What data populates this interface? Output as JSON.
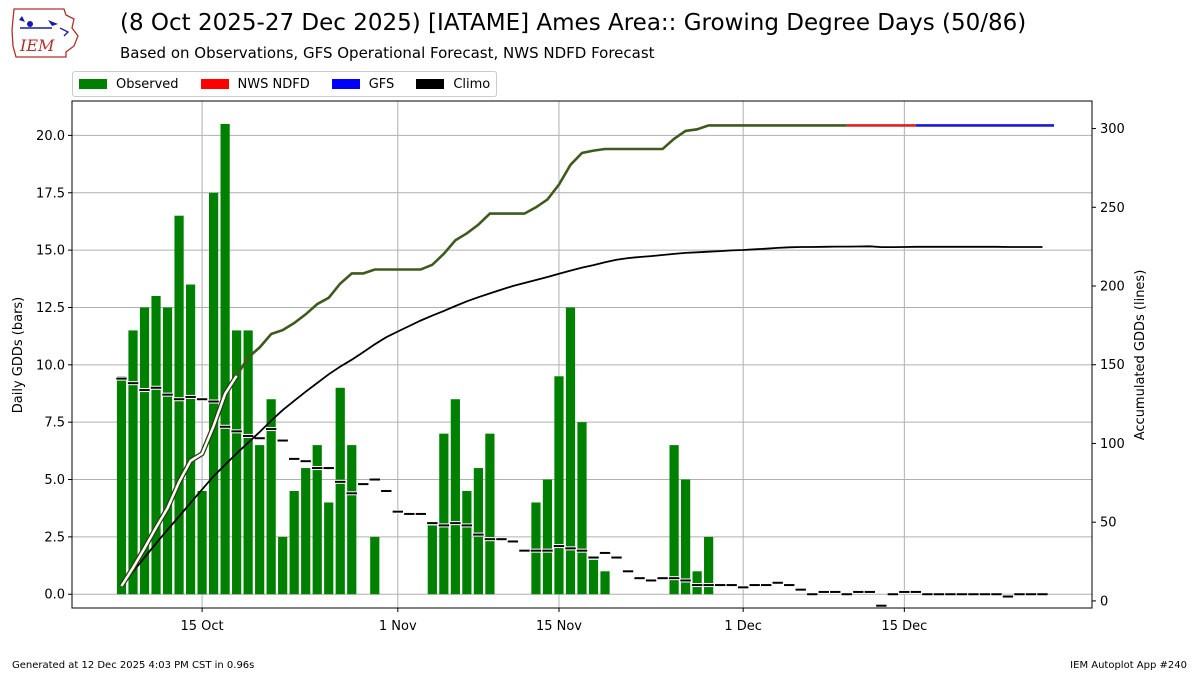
{
  "header": {
    "title": "(8 Oct 2025-27 Dec 2025) [IATAME] Ames Area:: Growing Degree Days (50/86)",
    "subtitle": "Based on Observations, GFS Operational Forecast, NWS NDFD Forecast",
    "logo_text": "IEM"
  },
  "footer": {
    "generated": "Generated at 12 Dec 2025 4:03 PM CST in 0.96s",
    "app": "IEM Autoplot App #240"
  },
  "legend": [
    {
      "label": "Observed",
      "color": "#008000"
    },
    {
      "label": "NWS NDFD",
      "color": "#ff0000"
    },
    {
      "label": "GFS",
      "color": "#0000ff"
    },
    {
      "label": "Climo",
      "color": "#000000"
    }
  ],
  "chart_data": {
    "type": "bar",
    "start_date": "2025-10-08",
    "end_date": "2025-12-27",
    "ylabel_left": "Daily GDDs (bars)",
    "ylabel_right": "Accumulated GDDs (lines)",
    "ylim_left": [
      -0.6,
      21.5
    ],
    "ylim_right": [
      -4.5,
      317.5
    ],
    "yticks_left": [
      "0.0",
      "2.5",
      "5.0",
      "7.5",
      "10.0",
      "12.5",
      "15.0",
      "17.5",
      "20.0"
    ],
    "yticks_right": [
      "0",
      "50",
      "100",
      "150",
      "200",
      "250",
      "300"
    ],
    "xticks": [
      {
        "date": "2025-10-15",
        "label": "15 Oct"
      },
      {
        "date": "2025-11-01",
        "label": "1 Nov"
      },
      {
        "date": "2025-11-15",
        "label": "15 Nov"
      },
      {
        "date": "2025-12-01",
        "label": "1 Dec"
      },
      {
        "date": "2025-12-15",
        "label": "15 Dec"
      }
    ],
    "grid": true,
    "legend_position": "top-left",
    "observed_daily": [
      9.5,
      11.5,
      12.5,
      13,
      12.5,
      16.5,
      13.5,
      4.5,
      17.5,
      20.5,
      11.5,
      11.5,
      6.5,
      8.5,
      2.5,
      4.5,
      5.5,
      6.5,
      4,
      9,
      6.5,
      0,
      2.5,
      0,
      0,
      0,
      0,
      3,
      7,
      8.5,
      4.5,
      5.5,
      7,
      0,
      0,
      0,
      4,
      5,
      9.5,
      12.5,
      7.5,
      1.5,
      1,
      0,
      0,
      0,
      0,
      0,
      6.5,
      5,
      1,
      2.5
    ],
    "climo_daily": [
      9.4,
      9.2,
      8.9,
      9.0,
      8.7,
      8.5,
      8.6,
      8.5,
      8.4,
      7.3,
      7.1,
      6.9,
      6.8,
      7.2,
      6.7,
      5.9,
      5.8,
      5.5,
      5.5,
      4.9,
      4.4,
      4.8,
      5.0,
      4.5,
      3.6,
      3.5,
      3.5,
      3.1,
      3.0,
      3.1,
      3.0,
      2.6,
      2.4,
      2.4,
      2.3,
      1.9,
      1.9,
      1.9,
      2.1,
      2.0,
      1.9,
      1.6,
      1.8,
      1.6,
      1.0,
      0.7,
      0.6,
      0.7,
      0.7,
      0.6,
      0.4,
      0.4,
      0.4,
      0.4,
      0.3,
      0.4,
      0.4,
      0.5,
      0.4,
      0.2,
      0.0,
      0.1,
      0.1,
      0.0,
      0.1,
      0.1,
      -0.5,
      0.0,
      0.1,
      0.1,
      0.0,
      0.0,
      0.0,
      0.0,
      0.0,
      0.0,
      0.0,
      -0.1,
      0.0,
      0.0,
      0.0
    ],
    "ndfd_accum": [
      302,
      302,
      302,
      302,
      302,
      302
    ],
    "gfs_accum": [
      302,
      302,
      302,
      302,
      302,
      302,
      302,
      302,
      302,
      302,
      302,
      302
    ]
  }
}
